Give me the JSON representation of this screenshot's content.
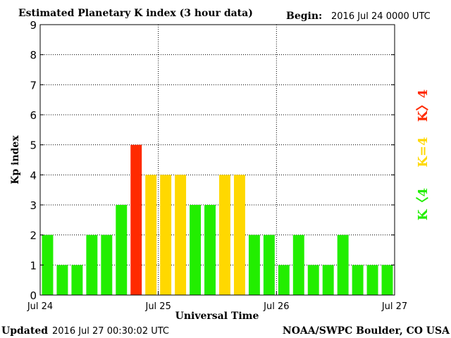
{
  "header": {
    "title": "Estimated Planetary K index (3 hour data)",
    "begin_label": "Begin:",
    "begin_value": "2016 Jul 24 0000 UTC"
  },
  "footer": {
    "updated_label": "Updated",
    "updated_value": "2016 Jul 27 00:30:02 UTC",
    "credit": "NOAA/SWPC Boulder, CO USA"
  },
  "side_legend": [
    {
      "label": "K>4",
      "color": "#ff2a00"
    },
    {
      "label": "K=4",
      "color": "#ffd800"
    },
    {
      "label": "K<4",
      "color": "#22ee00"
    }
  ],
  "chart_data": {
    "type": "bar",
    "title": "Estimated Planetary K index (3 hour data)",
    "xlabel": "Universal Time",
    "ylabel": "Kp index",
    "ylim": [
      0,
      9
    ],
    "yticks": [
      0,
      1,
      2,
      3,
      4,
      5,
      6,
      7,
      8,
      9
    ],
    "x_ticks": [
      "Jul 24",
      "Jul 25",
      "Jul 26",
      "Jul 27"
    ],
    "bars_per_day": 8,
    "grid": "dotted",
    "values": [
      2,
      1,
      1,
      2,
      2,
      3,
      5,
      4,
      4,
      4,
      3,
      3,
      4,
      4,
      2,
      2,
      1,
      2,
      1,
      1,
      2,
      1,
      1,
      1
    ],
    "colors": {
      "below_4": "#22ee00",
      "equal_4": "#ffd800",
      "above_4": "#ff2a00"
    }
  }
}
